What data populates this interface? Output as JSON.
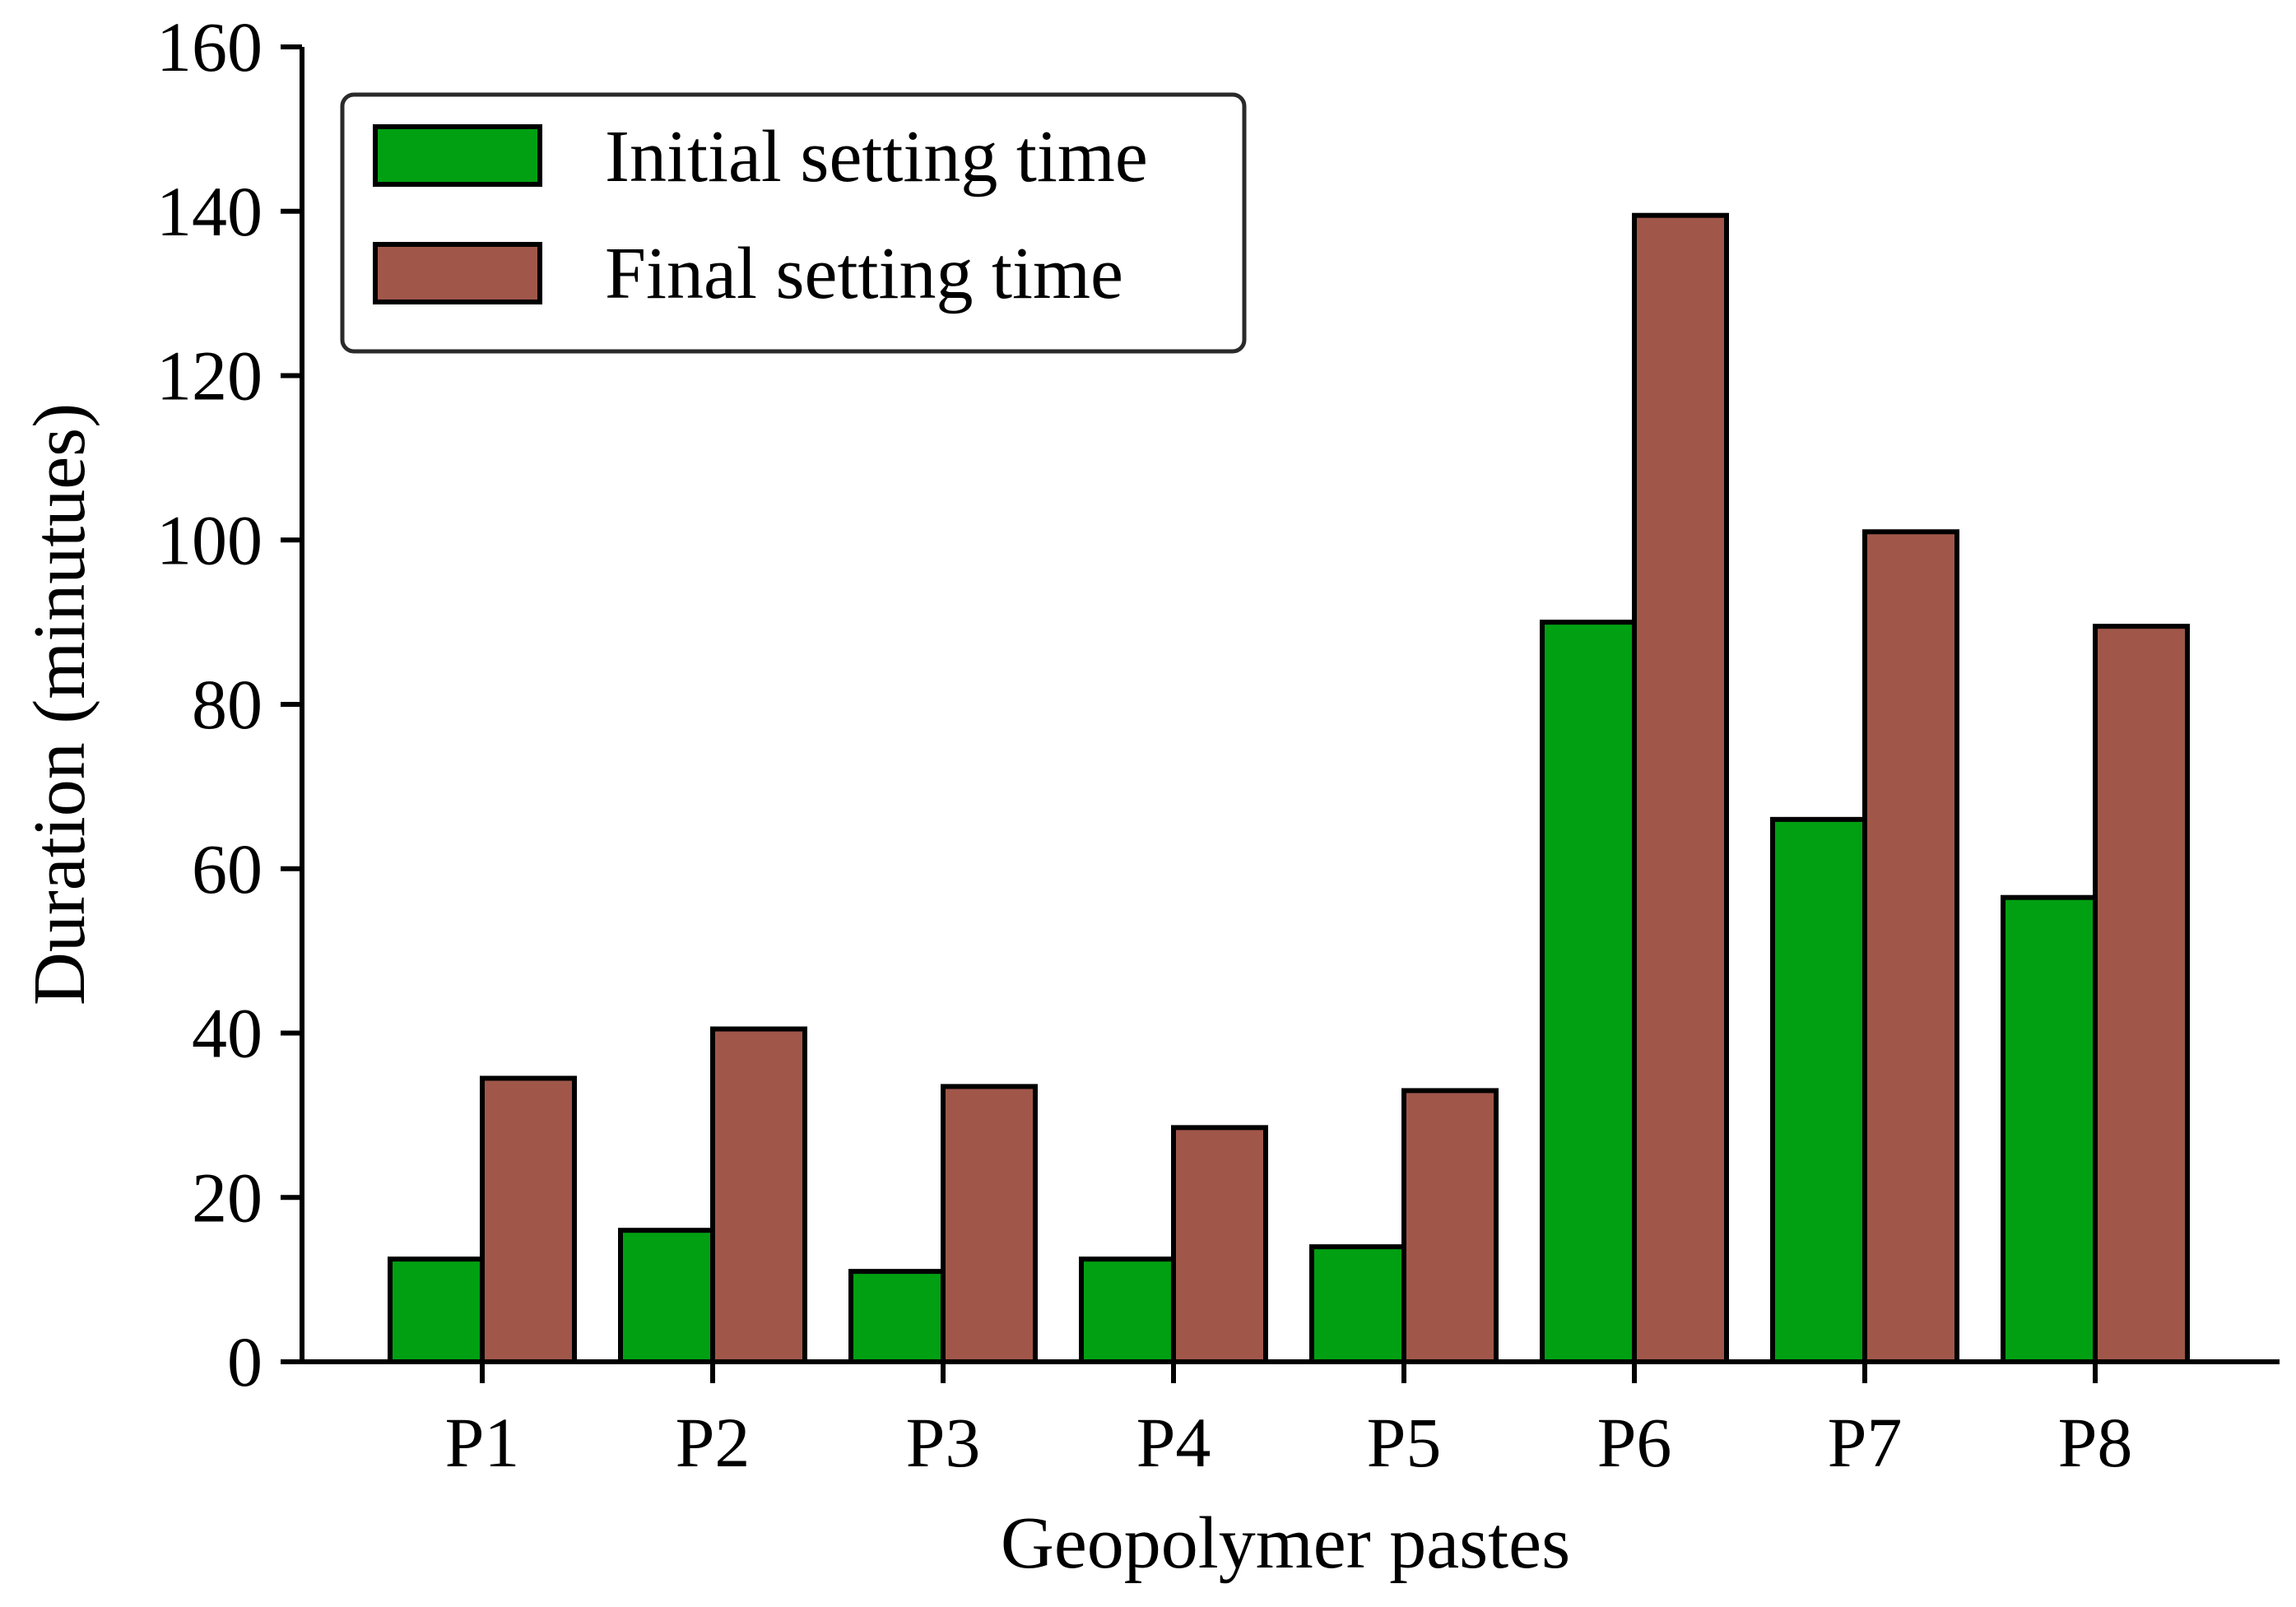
{
  "chart_data": {
    "type": "bar",
    "xlabel": "Geopolymer pastes",
    "ylabel": "Duration (minutues)",
    "categories": [
      "P1",
      "P2",
      "P3",
      "P4",
      "P5",
      "P6",
      "P7",
      "P8"
    ],
    "series": [
      {
        "name": "Initial setting time",
        "color": "#00A012",
        "values": [
          12.5,
          16,
          11,
          12.5,
          14,
          90,
          66,
          56.5
        ]
      },
      {
        "name": "Final setting time",
        "color": "#A0574A",
        "values": [
          34.5,
          40.5,
          33.5,
          28.5,
          33,
          139.5,
          101,
          89.5
        ]
      }
    ],
    "ylim": [
      0,
      160
    ],
    "yticks": [
      0,
      20,
      40,
      60,
      80,
      100,
      120,
      140,
      160
    ],
    "grid": false,
    "legend_position": "top-left"
  }
}
